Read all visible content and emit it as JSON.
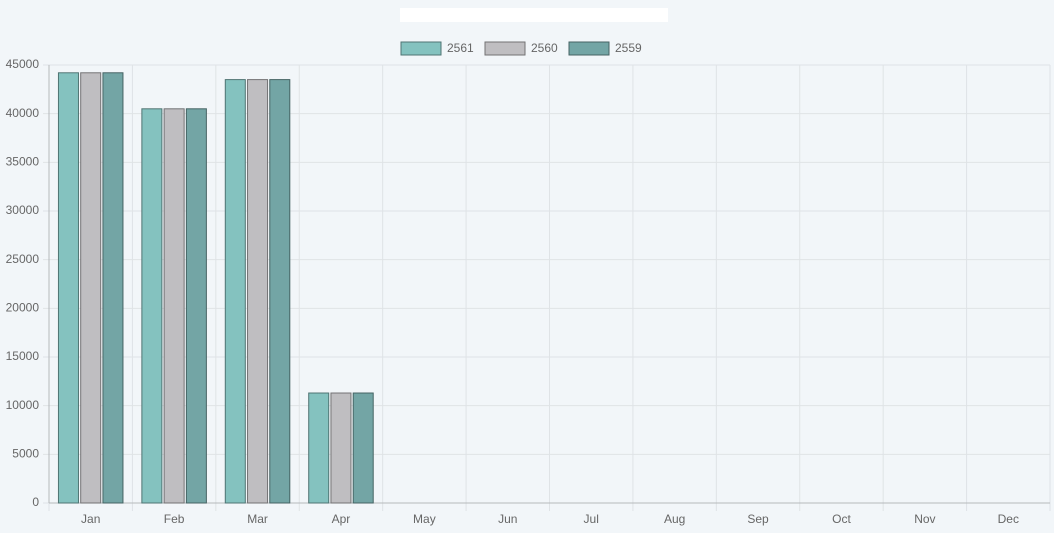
{
  "chart_data": {
    "type": "bar",
    "categories": [
      "Jan",
      "Feb",
      "Mar",
      "Apr",
      "May",
      "Jun",
      "Jul",
      "Aug",
      "Sep",
      "Oct",
      "Nov",
      "Dec"
    ],
    "series": [
      {
        "name": "2561",
        "color": "#84c2bf",
        "values": [
          44200,
          40500,
          43500,
          11300,
          null,
          null,
          null,
          null,
          null,
          null,
          null,
          null
        ]
      },
      {
        "name": "2560",
        "color": "#bfbec1",
        "values": [
          44200,
          40500,
          43500,
          11300,
          null,
          null,
          null,
          null,
          null,
          null,
          null,
          null
        ]
      },
      {
        "name": "2559",
        "color": "#73a5a5",
        "values": [
          44200,
          40500,
          43500,
          11300,
          null,
          null,
          null,
          null,
          null,
          null,
          null,
          null
        ]
      }
    ],
    "ylim": [
      0,
      45000
    ],
    "yticks": [
      0,
      5000,
      10000,
      15000,
      20000,
      25000,
      30000,
      35000,
      40000,
      45000
    ],
    "grid": true,
    "legend": "top"
  }
}
